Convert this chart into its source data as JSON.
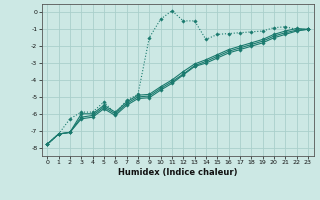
{
  "xlabel": "Humidex (Indice chaleur)",
  "background_color": "#cce8e4",
  "grid_color": "#aacfcb",
  "line_color": "#1a7a6e",
  "xlim": [
    -0.5,
    23.5
  ],
  "ylim": [
    -8.5,
    0.5
  ],
  "xticks": [
    0,
    1,
    2,
    3,
    4,
    5,
    6,
    7,
    8,
    9,
    10,
    11,
    12,
    13,
    14,
    15,
    16,
    17,
    18,
    19,
    20,
    21,
    22,
    23
  ],
  "yticks": [
    0,
    -1,
    -2,
    -3,
    -4,
    -5,
    -6,
    -7,
    -8
  ],
  "series1_x": [
    0,
    1,
    2,
    3,
    4,
    5,
    6,
    7,
    8,
    9,
    10,
    11,
    12,
    13,
    14,
    15,
    16,
    17,
    18,
    19,
    20,
    21,
    22,
    23
  ],
  "series1_y": [
    -7.8,
    -7.2,
    -6.3,
    -5.9,
    -5.9,
    -5.3,
    -6.0,
    -5.2,
    -4.85,
    -1.5,
    -0.4,
    0.1,
    -0.5,
    -0.5,
    -1.6,
    -1.3,
    -1.25,
    -1.2,
    -1.15,
    -1.1,
    -0.9,
    -0.85,
    -1.0,
    -1.0
  ],
  "series2_x": [
    0,
    1,
    2,
    3,
    4,
    5,
    6,
    7,
    8,
    9,
    10,
    11,
    12,
    13,
    14,
    15,
    16,
    17,
    18,
    19,
    20,
    21,
    22,
    23
  ],
  "series2_y": [
    -7.8,
    -7.2,
    -7.1,
    -6.0,
    -6.0,
    -5.5,
    -5.9,
    -5.3,
    -4.9,
    -4.85,
    -4.4,
    -4.0,
    -3.5,
    -3.05,
    -2.8,
    -2.5,
    -2.2,
    -2.0,
    -1.8,
    -1.6,
    -1.3,
    -1.1,
    -0.95,
    -1.0
  ],
  "series3_x": [
    0,
    1,
    2,
    3,
    4,
    5,
    6,
    7,
    8,
    9,
    10,
    11,
    12,
    13,
    14,
    15,
    16,
    17,
    18,
    19,
    20,
    21,
    22,
    23
  ],
  "series3_y": [
    -7.8,
    -7.2,
    -7.1,
    -6.2,
    -6.1,
    -5.6,
    -6.0,
    -5.4,
    -5.0,
    -4.95,
    -4.5,
    -4.1,
    -3.65,
    -3.15,
    -2.9,
    -2.6,
    -2.3,
    -2.1,
    -1.9,
    -1.7,
    -1.4,
    -1.2,
    -1.05,
    -1.0
  ],
  "series4_x": [
    0,
    1,
    2,
    3,
    4,
    5,
    6,
    7,
    8,
    9,
    10,
    11,
    12,
    13,
    14,
    15,
    16,
    17,
    18,
    19,
    20,
    21,
    22,
    23
  ],
  "series4_y": [
    -7.8,
    -7.2,
    -7.1,
    -6.3,
    -6.2,
    -5.7,
    -6.1,
    -5.5,
    -5.1,
    -5.05,
    -4.6,
    -4.2,
    -3.7,
    -3.2,
    -3.0,
    -2.7,
    -2.4,
    -2.2,
    -2.0,
    -1.8,
    -1.5,
    -1.3,
    -1.1,
    -1.0
  ]
}
